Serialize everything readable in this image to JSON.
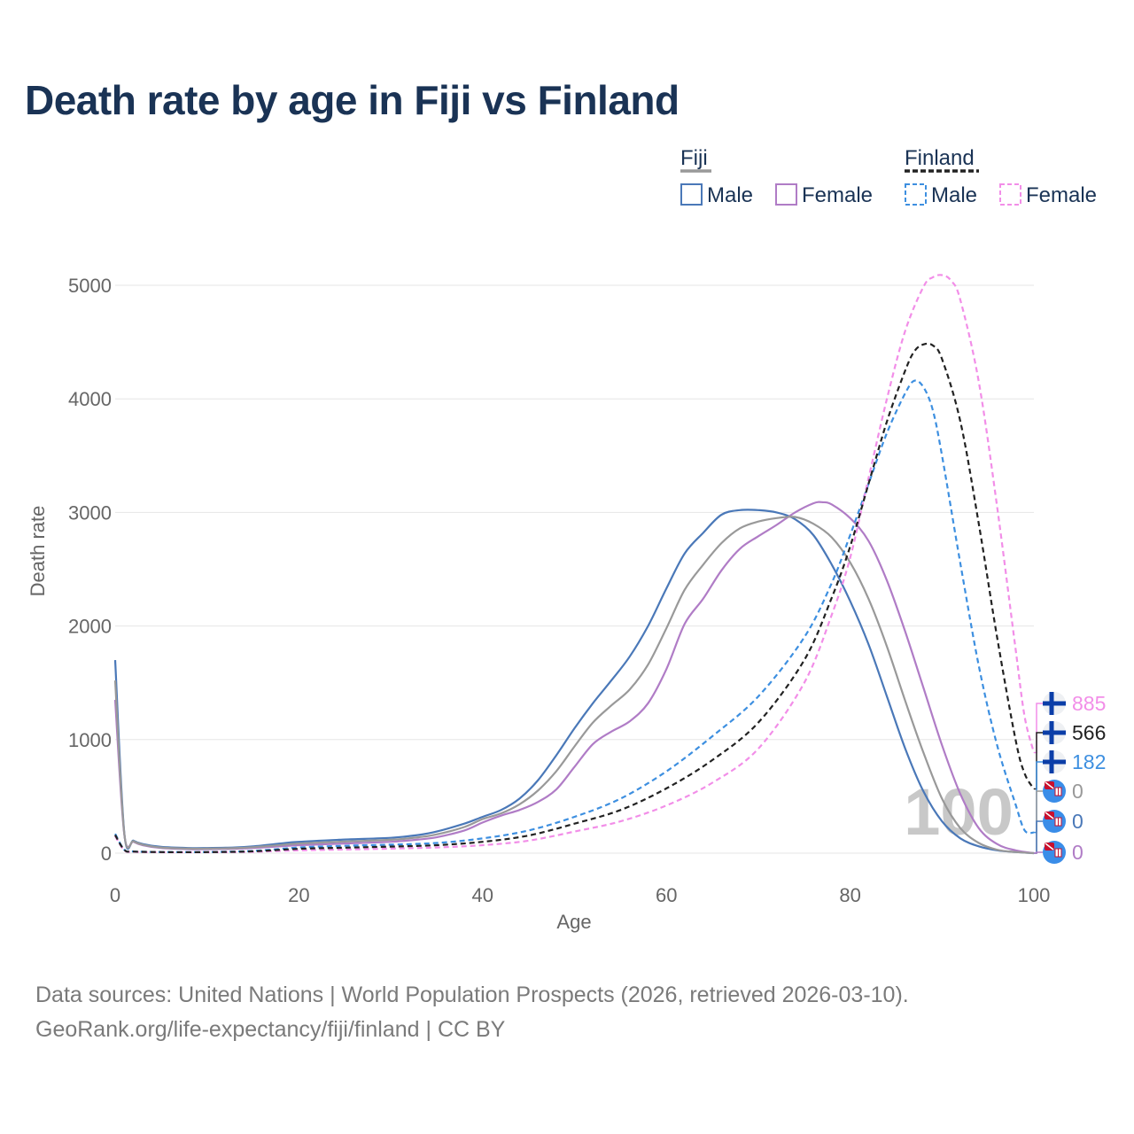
{
  "title": "Death rate by age in Fiji vs Finland",
  "source_line1": "Data sources: United Nations | World Population Prospects (2026, retrieved 2026-03-10).",
  "source_line2": "GeoRank.org/life-expectancy/fiji/finland | CC BY",
  "chart_data": {
    "type": "line",
    "title": "Death rate by age in Fiji vs Finland",
    "xlabel": "Age",
    "ylabel": "Death rate",
    "xlim": [
      0,
      100
    ],
    "ylim": [
      0,
      5000
    ],
    "xticks": [
      0,
      20,
      40,
      60,
      80,
      100
    ],
    "yticks": [
      0,
      1000,
      2000,
      3000,
      4000,
      5000
    ],
    "grid": true,
    "watermark": "100",
    "legend": {
      "groups": [
        {
          "name": "Fiji",
          "style": "solid",
          "swatch_color": "#999999",
          "items": [
            "Male",
            "Female"
          ]
        },
        {
          "name": "Finland",
          "style": "dashed",
          "swatch_color": "#222222",
          "items": [
            "Male",
            "Female"
          ]
        }
      ]
    },
    "series": [
      {
        "name": "Fiji Male",
        "country": "Fiji",
        "color": "#4a78b8",
        "dash": false,
        "x": [
          0,
          1,
          2,
          3,
          5,
          8,
          10,
          13,
          15,
          18,
          20,
          25,
          30,
          33,
          35,
          38,
          40,
          42,
          44,
          46,
          48,
          50,
          52,
          54,
          56,
          58,
          60,
          62,
          64,
          66,
          68,
          70,
          72,
          74,
          76,
          78,
          80,
          82,
          84,
          86,
          88,
          90,
          92,
          94,
          96,
          98,
          100
        ],
        "y": [
          1700,
          170,
          110,
          80,
          55,
          45,
          45,
          50,
          60,
          85,
          100,
          120,
          135,
          160,
          190,
          260,
          320,
          380,
          480,
          640,
          860,
          1100,
          1320,
          1520,
          1730,
          2000,
          2330,
          2640,
          2820,
          2980,
          3020,
          3020,
          3000,
          2940,
          2800,
          2540,
          2220,
          1840,
          1380,
          920,
          540,
          280,
          130,
          60,
          25,
          10,
          0
        ]
      },
      {
        "name": "Fiji Female",
        "country": "Fiji",
        "color": "#b07cc6",
        "dash": false,
        "x": [
          0,
          1,
          2,
          3,
          5,
          8,
          10,
          13,
          15,
          18,
          20,
          25,
          30,
          33,
          35,
          38,
          40,
          42,
          44,
          46,
          48,
          50,
          52,
          54,
          56,
          58,
          60,
          62,
          64,
          66,
          68,
          70,
          72,
          74,
          76,
          77,
          78,
          80,
          82,
          84,
          86,
          88,
          90,
          92,
          94,
          96,
          98,
          100
        ],
        "y": [
          1350,
          160,
          100,
          70,
          45,
          35,
          35,
          38,
          45,
          60,
          70,
          85,
          100,
          120,
          140,
          200,
          270,
          330,
          380,
          450,
          560,
          760,
          960,
          1070,
          1160,
          1320,
          1620,
          2020,
          2240,
          2490,
          2680,
          2790,
          2890,
          3000,
          3080,
          3090,
          3070,
          2950,
          2750,
          2400,
          1950,
          1450,
          950,
          520,
          220,
          80,
          25,
          0
        ]
      },
      {
        "name": "Fiji Total",
        "country": "Fiji",
        "color": "#999999",
        "dash": false,
        "x": [
          0,
          1,
          2,
          3,
          5,
          8,
          10,
          13,
          15,
          18,
          20,
          25,
          30,
          33,
          35,
          38,
          40,
          42,
          44,
          46,
          48,
          50,
          52,
          54,
          56,
          58,
          60,
          62,
          64,
          66,
          68,
          70,
          72,
          74,
          76,
          78,
          80,
          82,
          84,
          86,
          88,
          90,
          92,
          94,
          96,
          98,
          100
        ],
        "y": [
          1520,
          165,
          105,
          75,
          50,
          40,
          40,
          44,
          52,
          72,
          85,
          102,
          118,
          140,
          165,
          230,
          300,
          350,
          430,
          550,
          720,
          940,
          1150,
          1300,
          1440,
          1660,
          1980,
          2320,
          2540,
          2730,
          2860,
          2920,
          2950,
          2960,
          2900,
          2780,
          2560,
          2240,
          1820,
          1340,
          880,
          480,
          220,
          90,
          30,
          10,
          0
        ]
      },
      {
        "name": "Finland Male",
        "country": "Finland",
        "color": "#3d8fe0",
        "dash": true,
        "x": [
          0,
          1,
          2,
          5,
          10,
          15,
          20,
          25,
          30,
          35,
          40,
          45,
          50,
          55,
          60,
          65,
          70,
          75,
          78,
          80,
          82,
          84,
          86,
          87,
          88,
          89,
          90,
          92,
          94,
          96,
          98,
          99,
          100
        ],
        "y": [
          170,
          30,
          15,
          10,
          10,
          20,
          50,
          65,
          75,
          90,
          130,
          200,
          320,
          480,
          720,
          1030,
          1380,
          1900,
          2380,
          2800,
          3250,
          3700,
          4050,
          4160,
          4100,
          3900,
          3500,
          2550,
          1650,
          950,
          430,
          200,
          182
        ]
      },
      {
        "name": "Finland Female",
        "country": "Finland",
        "color": "#f28ee8",
        "dash": true,
        "x": [
          0,
          1,
          2,
          5,
          10,
          15,
          20,
          25,
          30,
          35,
          40,
          45,
          50,
          55,
          60,
          65,
          70,
          75,
          78,
          80,
          82,
          84,
          86,
          88,
          89,
          90,
          91,
          92,
          94,
          96,
          98,
          99,
          100
        ],
        "y": [
          150,
          25,
          12,
          8,
          8,
          12,
          25,
          32,
          40,
          50,
          70,
          110,
          190,
          280,
          420,
          620,
          920,
          1500,
          2100,
          2600,
          3300,
          4000,
          4600,
          4990,
          5070,
          5090,
          5040,
          4870,
          4150,
          3050,
          1800,
          1200,
          885
        ]
      },
      {
        "name": "Finland Total",
        "country": "Finland",
        "color": "#222222",
        "dash": true,
        "x": [
          0,
          1,
          2,
          5,
          10,
          15,
          20,
          25,
          30,
          35,
          40,
          45,
          50,
          55,
          60,
          65,
          70,
          75,
          78,
          80,
          82,
          84,
          86,
          87,
          88,
          89,
          90,
          92,
          94,
          96,
          98,
          99,
          100
        ],
        "y": [
          160,
          28,
          14,
          9,
          9,
          16,
          38,
          48,
          58,
          70,
          100,
          155,
          260,
          380,
          570,
          820,
          1150,
          1700,
          2250,
          2700,
          3250,
          3800,
          4250,
          4420,
          4480,
          4470,
          4350,
          3800,
          2900,
          1900,
          1000,
          700,
          566
        ]
      }
    ],
    "end_labels": [
      {
        "series": "Finland Female",
        "value": "885",
        "color": "#f28ee8",
        "flag": "finland"
      },
      {
        "series": "Finland Total",
        "value": "566",
        "color": "#222222",
        "flag": "finland"
      },
      {
        "series": "Finland Male",
        "value": "182",
        "color": "#3d8fe0",
        "flag": "finland"
      },
      {
        "series": "Fiji Total",
        "value": "0",
        "color": "#999999",
        "flag": "fiji"
      },
      {
        "series": "Fiji Male",
        "value": "0",
        "color": "#4a78b8",
        "flag": "fiji"
      },
      {
        "series": "Fiji Female",
        "value": "0",
        "color": "#b07cc6",
        "flag": "fiji"
      }
    ]
  }
}
